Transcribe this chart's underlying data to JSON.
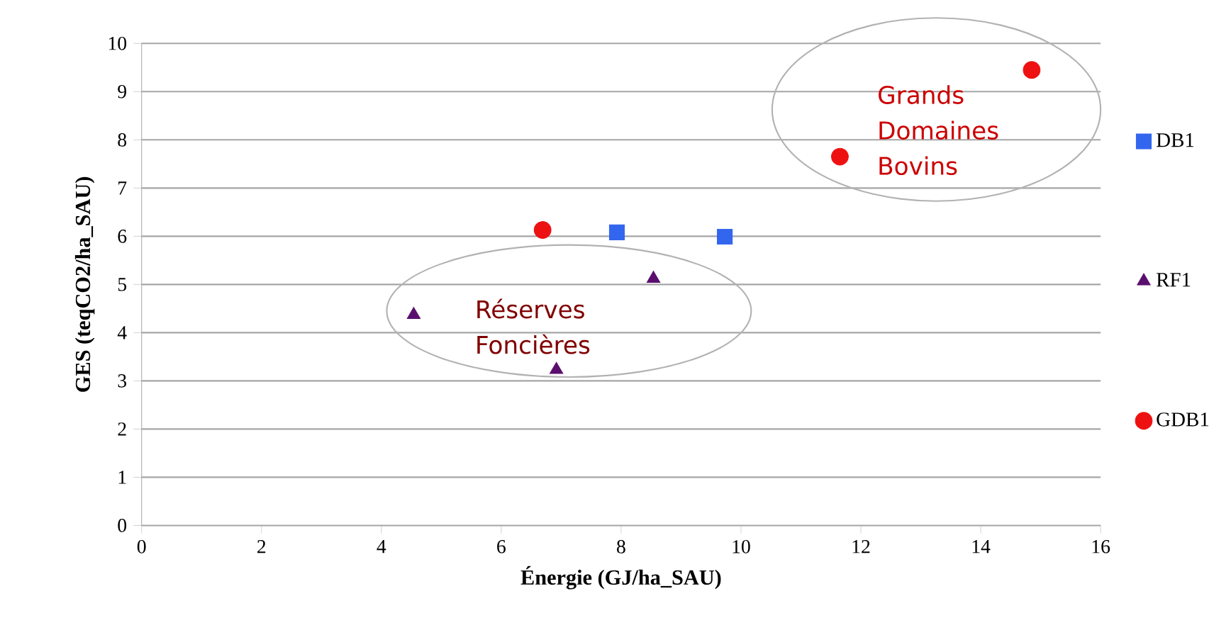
{
  "chart_data": {
    "type": "scatter",
    "xlabel": "Énergie (GJ/ha_SAU)",
    "ylabel": "GES (teqCO2/ha_SAU)",
    "xlim": [
      0,
      16
    ],
    "xticks": [
      0,
      2,
      4,
      6,
      8,
      10,
      12,
      14,
      16
    ],
    "ylim": [
      0,
      10
    ],
    "yticks": [
      0,
      1,
      2,
      3,
      4,
      5,
      6,
      7,
      8,
      9,
      10
    ],
    "grid": "y",
    "legend": "right",
    "series": [
      {
        "name": "DB1",
        "color": "#3366ee",
        "marker": "square",
        "x": [
          7.93,
          9.73
        ],
        "values": [
          6.08,
          5.99
        ]
      },
      {
        "name": "RF1",
        "color": "#5a0f6e",
        "marker": "triangle",
        "x": [
          4.54,
          6.92,
          8.54
        ],
        "values": [
          4.37,
          3.23,
          5.12
        ]
      },
      {
        "name": "GDB1",
        "color": "#ee1111",
        "marker": "circle",
        "x": [
          6.69,
          11.65,
          14.85
        ],
        "values": [
          6.13,
          7.65,
          9.45
        ]
      }
    ],
    "annotations": [
      "Grands Domaines Bovins",
      "Réserves Foncières"
    ]
  }
}
